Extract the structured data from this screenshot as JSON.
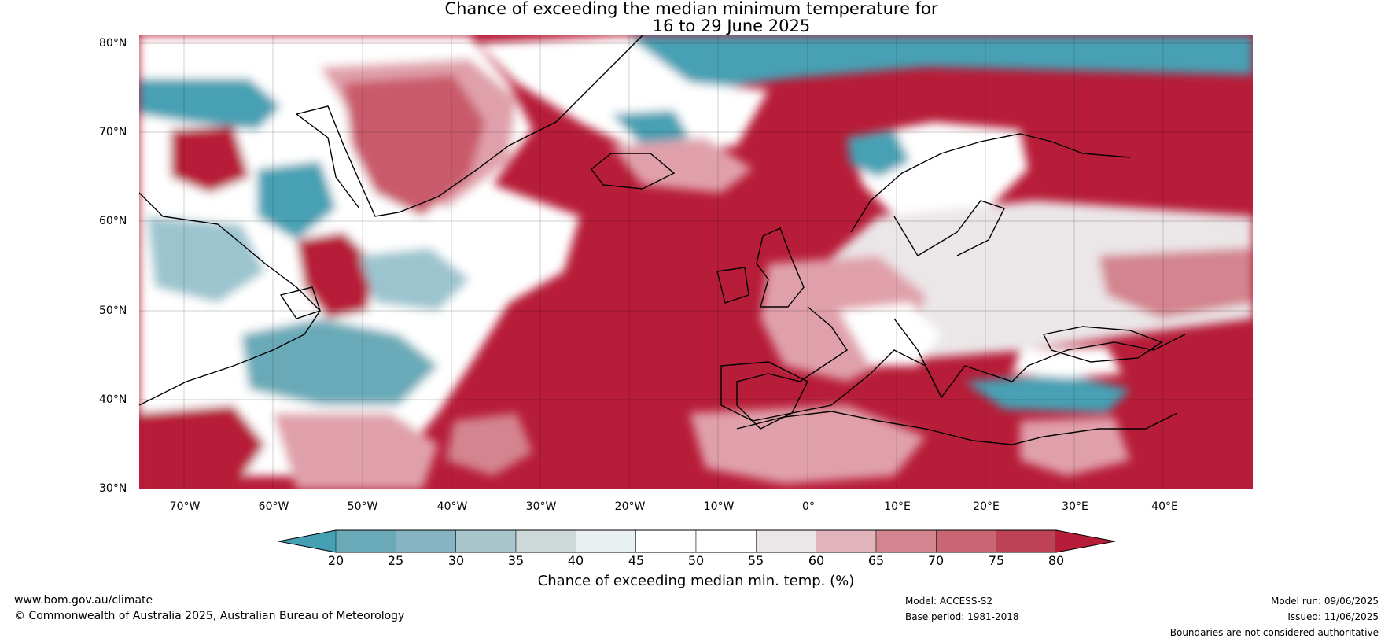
{
  "title": {
    "line1": "Chance of exceeding the median minimum temperature for",
    "line2": "16 to 29 June 2025"
  },
  "map": {
    "lat_labels": [
      "80°N",
      "70°N",
      "60°N",
      "50°N",
      "40°N",
      "30°N"
    ],
    "lon_labels": [
      "70°W",
      "60°W",
      "50°W",
      "40°W",
      "30°W",
      "20°W",
      "10°W",
      "0°",
      "10°E",
      "20°E",
      "30°E",
      "40°E"
    ],
    "colors": {
      "very_low": "#46a0b4",
      "low": "#9cc4cf",
      "near": "#ffffff",
      "light_high": "#e0a0ab",
      "high": "#c95a6b",
      "very_high": "#b71c38",
      "coast": "#000000",
      "border": "#808080"
    }
  },
  "colorbar": {
    "ticks": [
      "20",
      "25",
      "30",
      "35",
      "40",
      "45",
      "50",
      "55",
      "60",
      "65",
      "70",
      "75",
      "80"
    ],
    "colors": [
      "#46a0b4",
      "#6aaab8",
      "#86b4c2",
      "#a9c6cc",
      "#cfd8d9",
      "#e8f0f2",
      "#ffffff",
      "#ffffff",
      "#ebe6e8",
      "#e0b4ba",
      "#d3848e",
      "#c86673",
      "#bd4253",
      "#b71c38"
    ],
    "label": "Chance of exceeding median min. temp. (%)"
  },
  "footer": {
    "website": "www.bom.gov.au/climate",
    "copyright": "© Commonwealth of Australia 2025, Australian Bureau of Meteorology",
    "model": "Model: ACCESS-S2",
    "base_period": "Base period: 1981-2018",
    "model_run": "Model run: 09/06/2025",
    "issued": "Issued: 11/06/2025",
    "disclaimer": "Boundaries are not considered authoritative"
  }
}
